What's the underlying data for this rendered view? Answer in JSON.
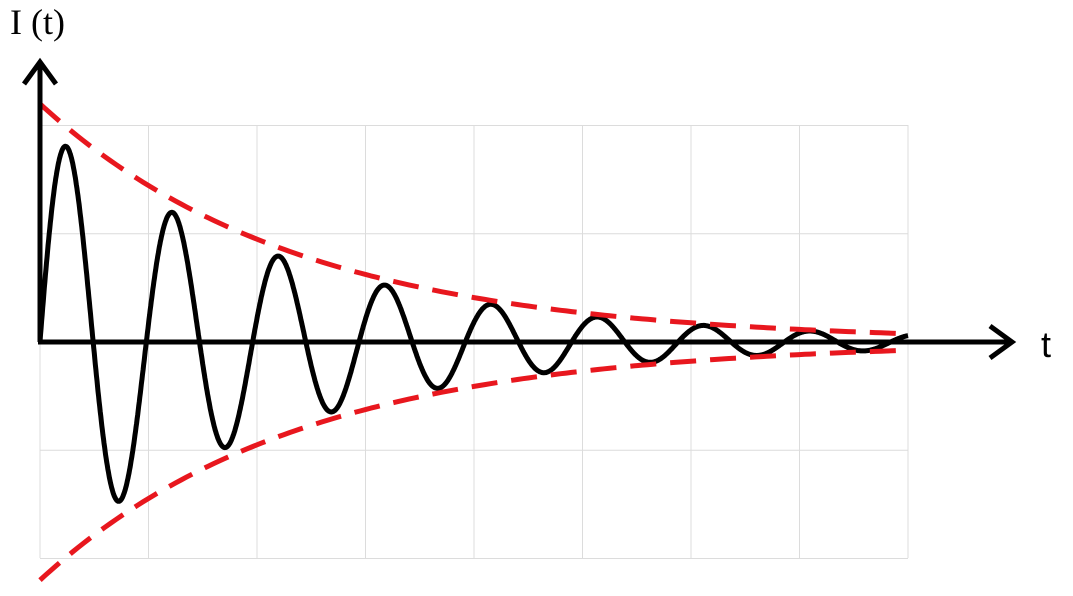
{
  "chart_data": {
    "type": "line",
    "title": "",
    "xlabel": "t",
    "ylabel": "I (t)",
    "grid": true,
    "legend": "none",
    "xlim": [
      0,
      8
    ],
    "ylim": [
      -2,
      2
    ],
    "series": [
      {
        "kind": "damped-oscillation",
        "color": "#000000",
        "style": "solid",
        "amplitude": 2.0,
        "decay_rate": 0.42,
        "period": 0.98
      },
      {
        "kind": "upper-envelope",
        "color": "#e8171e",
        "style": "dashed",
        "amplitude": 2.2,
        "decay_rate": 0.42
      },
      {
        "kind": "lower-envelope",
        "color": "#e8171e",
        "style": "dashed",
        "amplitude": -2.2,
        "decay_rate": 0.42
      }
    ]
  }
}
